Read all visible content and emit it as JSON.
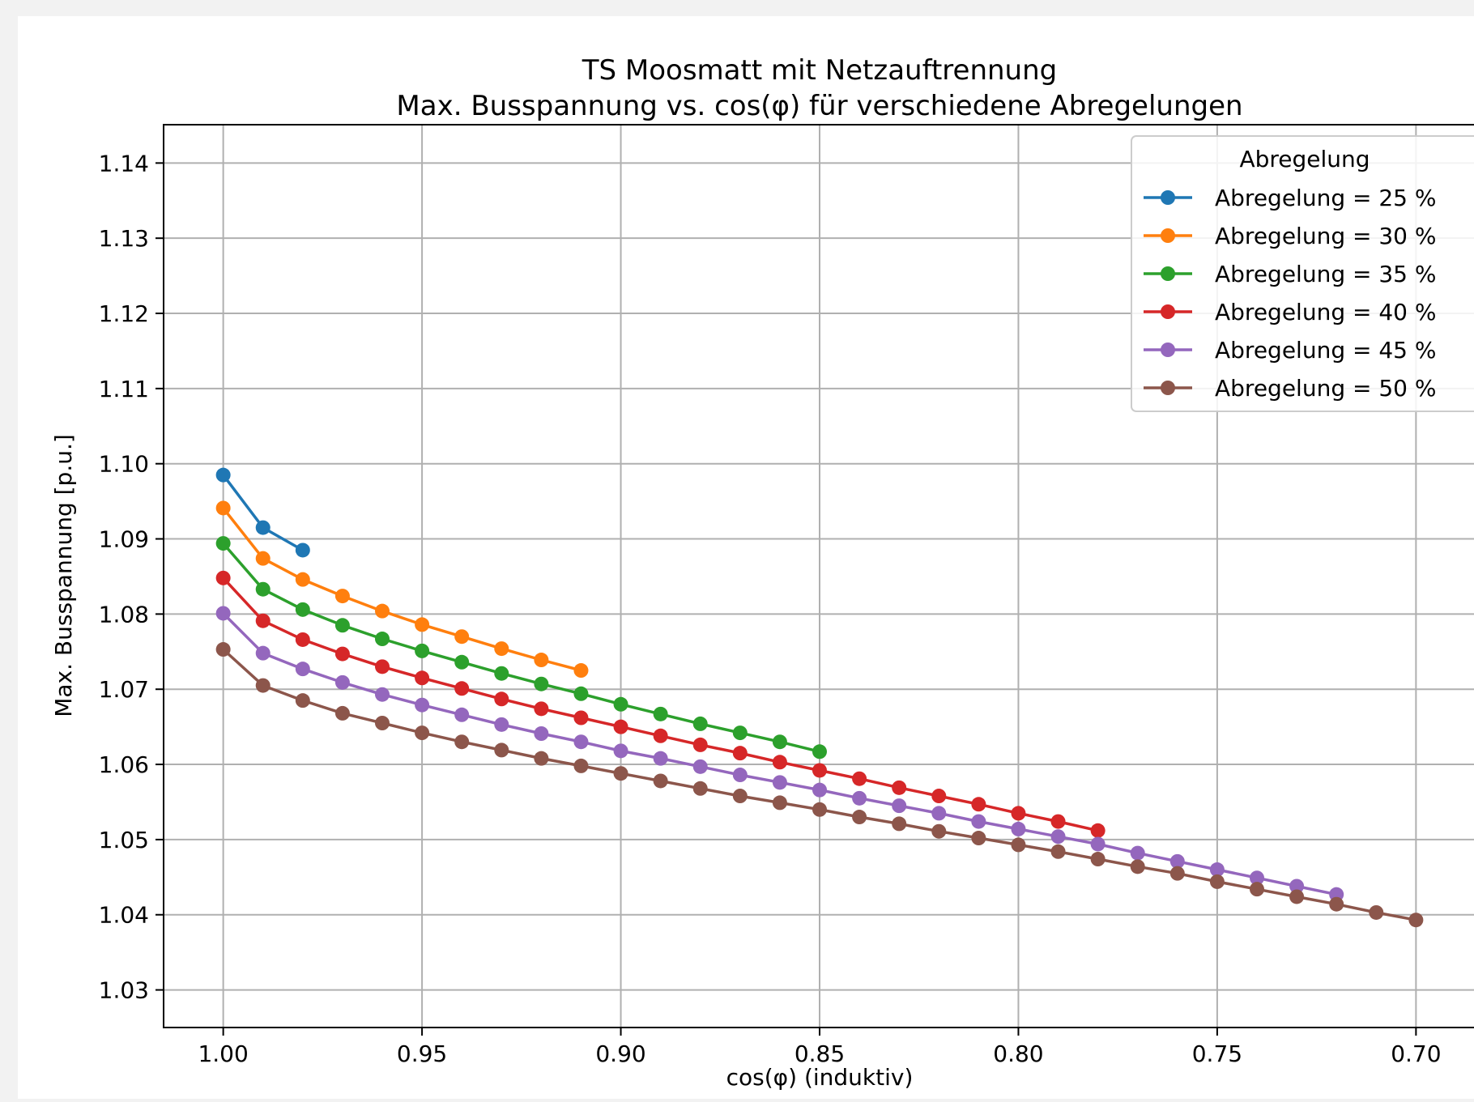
{
  "chart_data": {
    "type": "line",
    "title": "TS Moosmatt mit Netzauftrennung",
    "subtitle": "Max. Busspannung vs. cos(φ) für verschiedene Abregelungen",
    "xlabel": "cos(φ) (induktiv)",
    "ylabel": "Max. Busspannung [p.u.]",
    "xlim": [
      1.015,
      0.685
    ],
    "x_inverted": true,
    "ylim": [
      1.025,
      1.1451
    ],
    "xticks": [
      "1.00",
      "0.95",
      "0.90",
      "0.85",
      "0.80",
      "0.75",
      "0.70"
    ],
    "yticks": [
      "1.03",
      "1.04",
      "1.05",
      "1.06",
      "1.07",
      "1.08",
      "1.09",
      "1.10",
      "1.11",
      "1.12",
      "1.13",
      "1.14"
    ],
    "grid": true,
    "legend": {
      "title": "Abregelung",
      "placement": "top-right"
    },
    "series": [
      {
        "name": "Abregelung = 25 %",
        "color": "#1f77b4",
        "x": [
          1.0,
          0.99,
          0.98
        ],
        "y": [
          1.0985,
          1.0915,
          1.0885
        ]
      },
      {
        "name": "Abregelung = 30 %",
        "color": "#ff7f0e",
        "x": [
          1.0,
          0.99,
          0.98,
          0.97,
          0.96,
          0.95,
          0.94,
          0.93,
          0.92,
          0.91
        ],
        "y": [
          1.0941,
          1.0874,
          1.0846,
          1.0824,
          1.0804,
          1.0786,
          1.077,
          1.0754,
          1.0739,
          1.0725
        ]
      },
      {
        "name": "Abregelung = 35 %",
        "color": "#2ca02c",
        "x": [
          1.0,
          0.99,
          0.98,
          0.97,
          0.96,
          0.95,
          0.94,
          0.93,
          0.92,
          0.91,
          0.9,
          0.89,
          0.88,
          0.87,
          0.86,
          0.85
        ],
        "y": [
          1.0894,
          1.0833,
          1.0806,
          1.0785,
          1.0767,
          1.0751,
          1.0736,
          1.0721,
          1.0707,
          1.0694,
          1.068,
          1.0667,
          1.0654,
          1.0642,
          1.063,
          1.0617
        ]
      },
      {
        "name": "Abregelung = 40 %",
        "color": "#d62728",
        "x": [
          1.0,
          0.99,
          0.98,
          0.97,
          0.96,
          0.95,
          0.94,
          0.93,
          0.92,
          0.91,
          0.9,
          0.89,
          0.88,
          0.87,
          0.86,
          0.85,
          0.84,
          0.83,
          0.82,
          0.81,
          0.8,
          0.79,
          0.78
        ],
        "y": [
          1.0848,
          1.0791,
          1.0766,
          1.0747,
          1.073,
          1.0715,
          1.0701,
          1.0687,
          1.0674,
          1.0662,
          1.065,
          1.0638,
          1.0626,
          1.0615,
          1.0603,
          1.0592,
          1.0581,
          1.0569,
          1.0558,
          1.0547,
          1.0535,
          1.0524,
          1.0512
        ]
      },
      {
        "name": "Abregelung = 45 %",
        "color": "#9467bd",
        "x": [
          1.0,
          0.99,
          0.98,
          0.97,
          0.96,
          0.95,
          0.94,
          0.93,
          0.92,
          0.91,
          0.9,
          0.89,
          0.88,
          0.87,
          0.86,
          0.85,
          0.84,
          0.83,
          0.82,
          0.81,
          0.8,
          0.79,
          0.78,
          0.77,
          0.76,
          0.75,
          0.74,
          0.73,
          0.72
        ],
        "y": [
          1.0801,
          1.0748,
          1.0727,
          1.0709,
          1.0693,
          1.0679,
          1.0666,
          1.0653,
          1.0641,
          1.063,
          1.0618,
          1.0608,
          1.0597,
          1.0586,
          1.0576,
          1.0566,
          1.0555,
          1.0545,
          1.0535,
          1.0524,
          1.0514,
          1.0504,
          1.0494,
          1.0482,
          1.0471,
          1.046,
          1.0449,
          1.0438,
          1.0427
        ]
      },
      {
        "name": "Abregelung = 50 %",
        "color": "#8c564b",
        "x": [
          1.0,
          0.99,
          0.98,
          0.97,
          0.96,
          0.95,
          0.94,
          0.93,
          0.92,
          0.91,
          0.9,
          0.89,
          0.88,
          0.87,
          0.86,
          0.85,
          0.84,
          0.83,
          0.82,
          0.81,
          0.8,
          0.79,
          0.78,
          0.77,
          0.76,
          0.75,
          0.74,
          0.73,
          0.72,
          0.71,
          0.7
        ],
        "y": [
          1.0753,
          1.0705,
          1.0685,
          1.0668,
          1.0655,
          1.0642,
          1.063,
          1.0619,
          1.0608,
          1.0598,
          1.0588,
          1.0578,
          1.0568,
          1.0558,
          1.0549,
          1.054,
          1.053,
          1.0521,
          1.0511,
          1.0502,
          1.0493,
          1.0484,
          1.0474,
          1.0464,
          1.0455,
          1.0444,
          1.0434,
          1.0424,
          1.0414,
          1.0403,
          1.0393
        ]
      }
    ]
  }
}
